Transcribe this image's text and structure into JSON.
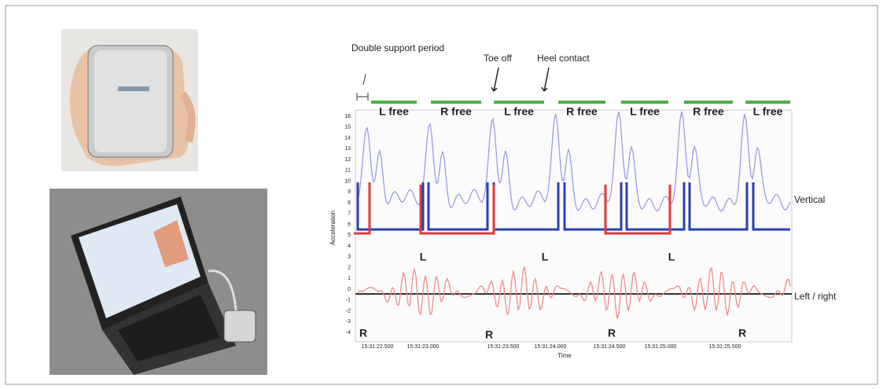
{
  "figure": {
    "annotations": {
      "double_support": "Double support period",
      "toe_off": "Toe off",
      "heel_contact": "Heel contact"
    },
    "free_labels": [
      "L free",
      "R free",
      "L free",
      "R free",
      "L free",
      "R free",
      "L free"
    ],
    "y_axis_label": "Acceleration",
    "x_axis_label": "Time",
    "y_tick_labels": [
      16,
      15,
      14,
      13,
      12,
      11,
      10,
      9,
      8,
      7,
      6,
      5,
      4,
      3,
      2,
      1,
      0,
      -1,
      -2,
      -3,
      -4
    ],
    "x_tick_labels": [
      "15:31:22.500",
      "15:31:23.000",
      "15:31:23.500",
      "15:31:24.000",
      "15:31:24.500",
      "15:31:25.000",
      "15:31:25.500"
    ],
    "series_labels": {
      "vertical": "Vertical",
      "left_right": "Left / right"
    },
    "l_markers": [
      "L",
      "L",
      "L"
    ],
    "r_markers": [
      "R",
      "R",
      "R",
      "R"
    ]
  }
}
